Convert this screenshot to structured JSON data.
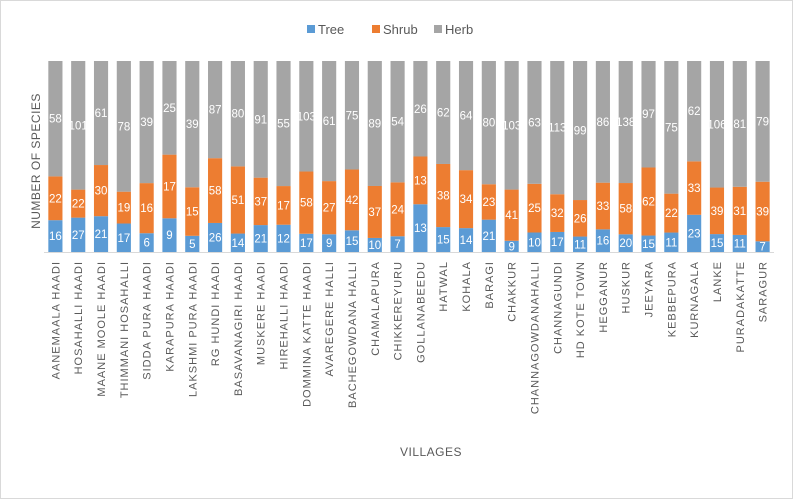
{
  "chart_data": {
    "type": "bar",
    "stacked": true,
    "percent_stacked": true,
    "title": "",
    "xlabel": "VILLAGES",
    "ylabel": "NUMBER OF SPECIES",
    "legend_position": "top-center",
    "grid": false,
    "colors": {
      "Tree": "#5b9bd5",
      "Shrub": "#ed7d31",
      "Herb": "#a5a5a5"
    },
    "categories": [
      "AANEMAALA HAADI",
      "HOSAHALLI HAADI",
      "MAANE MOOLE HAADI",
      "THIMMANI HOSAHALLI",
      "SIDDA PURA HAADI",
      "KARAPURA HAADI",
      "LAKSHMI PURA HAADI",
      "RG HUNDI HAADI",
      "BASAVANAGIRI HAADI",
      "MUSKERE HAADI",
      "HIREHALLI HAADI",
      "DOMMINA KATTE HAADI",
      "AVAREGERE HALLI",
      "BACHEGOWDANA HALLI",
      "CHAMALAPURA",
      "CHIKKEREYURU",
      "GOLLANABEEDU",
      "HATWAL",
      "KOHALA",
      "BARAGI",
      "CHAKKUR",
      "CHANNAGOWDANAHALLI",
      "CHANNAGUNDI",
      "HD KOTE TOWN",
      "HEGGANUR",
      "HUSKUR",
      "JEEYARA",
      "KEBBEPURA",
      "KURNAGALA",
      "LANKE",
      "PURADAKATTE",
      "SARAGUR"
    ],
    "series": [
      {
        "name": "Tree",
        "values": [
          16,
          27,
          21,
          17,
          6,
          9,
          5,
          26,
          14,
          21,
          12,
          17,
          9,
          15,
          10,
          7,
          13,
          15,
          14,
          21,
          9,
          10,
          17,
          11,
          16,
          20,
          15,
          11,
          23,
          15,
          11,
          7
        ]
      },
      {
        "name": "Shrub",
        "values": [
          22,
          22,
          30,
          19,
          16,
          17,
          15,
          58,
          51,
          37,
          17,
          58,
          27,
          42,
          37,
          24,
          13,
          38,
          34,
          23,
          41,
          25,
          32,
          26,
          33,
          58,
          62,
          22,
          33,
          39,
          31,
          39
        ]
      },
      {
        "name": "Herb",
        "values": [
          58,
          101,
          61,
          78,
          39,
          25,
          39,
          87,
          80,
          91,
          55,
          103,
          61,
          75,
          89,
          54,
          26,
          62,
          64,
          80,
          103,
          63,
          113,
          99,
          86,
          138,
          97,
          75,
          62,
          106,
          81,
          79
        ]
      }
    ]
  }
}
